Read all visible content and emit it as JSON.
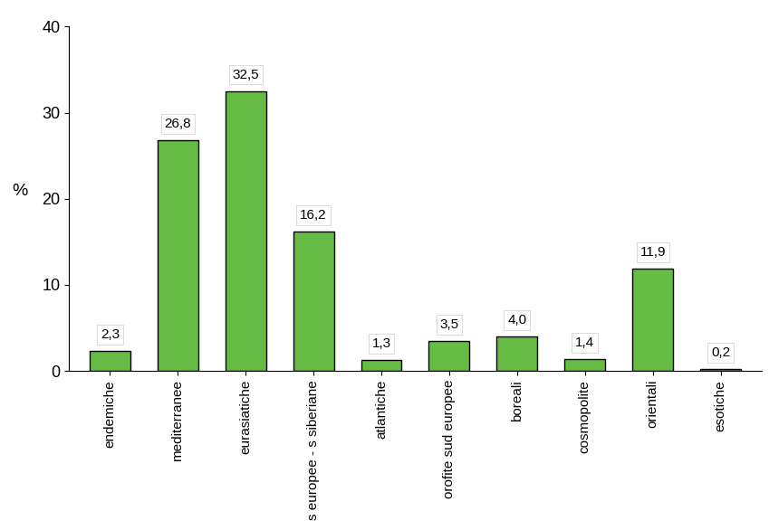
{
  "chart_data": {
    "type": "bar",
    "y_label": "%",
    "categories": [
      "endemiche",
      "mediterranee",
      "eurasiatiche",
      "s europee - s siberiane",
      "atlantiche",
      "orofite sud europee",
      "boreali",
      "cosmopolite",
      "orientali",
      "esotiche"
    ],
    "values": [
      2.3,
      26.8,
      32.5,
      16.2,
      1.3,
      3.5,
      4.0,
      1.4,
      11.9,
      0.2
    ],
    "value_labels": [
      "2,3",
      "26,8",
      "32,5",
      "16,2",
      "1,3",
      "3,5",
      "4,0",
      "1,4",
      "11,9",
      "0,2"
    ],
    "data_labels": true,
    "color": "#66bb44",
    "ylim": [
      0,
      40
    ],
    "yticks": [
      0,
      10,
      20,
      30,
      40
    ],
    "grid": false
  }
}
